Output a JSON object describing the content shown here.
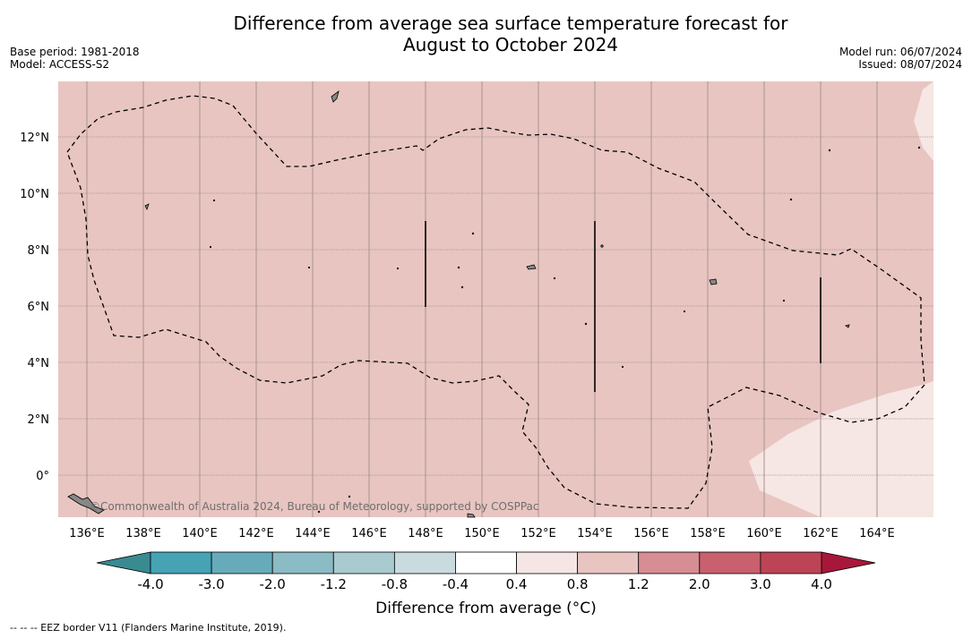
{
  "title": {
    "line1": "Difference from average sea surface temperature forecast for",
    "line2": "August to October 2024"
  },
  "meta": {
    "base_period": "Base period: 1981-2018",
    "model": "Model: ACCESS-S2",
    "model_run": "Model run: 06/07/2024",
    "issued": "Issued: 08/07/2024"
  },
  "map": {
    "lon_labels": [
      "136°E",
      "138°E",
      "140°E",
      "142°E",
      "144°E",
      "146°E",
      "148°E",
      "150°E",
      "152°E",
      "154°E",
      "156°E",
      "158°E",
      "160°E",
      "162°E",
      "164°E"
    ],
    "lon_values": [
      136,
      138,
      140,
      142,
      144,
      146,
      148,
      150,
      152,
      154,
      156,
      158,
      160,
      162,
      164
    ],
    "lat_labels": [
      "12°N",
      "10°N",
      "8°N",
      "6°N",
      "4°N",
      "2°N",
      "0°"
    ],
    "lat_values": [
      12,
      10,
      8,
      6,
      4,
      2,
      0
    ],
    "lon_range": [
      135,
      166
    ],
    "lat_range": [
      -1.5,
      14
    ],
    "copyright": "©Commonwealth of Australia 2024, Bureau of Meteorology, supported by COSPPac",
    "fill_main": "#e8c5c1",
    "fill_light": "#f6e6e4"
  },
  "colorbar": {
    "tick_labels": [
      "-4.0",
      "-3.0",
      "-2.0",
      "-1.2",
      "-0.8",
      "-0.4",
      "0.4",
      "0.8",
      "1.2",
      "2.0",
      "3.0",
      "4.0"
    ],
    "colors": [
      "#45a3b4",
      "#67abba",
      "#8bbbc5",
      "#a9cbcf",
      "#c9dbdf",
      "#ffffff",
      "#f5e6e5",
      "#e8c5c1",
      "#d68d93",
      "#c8606d",
      "#bc4456"
    ],
    "extend_low_color": "#3a8a92",
    "extend_high_color": "#a8173a",
    "label": "Difference from average (°C)"
  },
  "footnote": "--  --  -- EEZ border V11 (Flanders Marine Institute, 2019)."
}
